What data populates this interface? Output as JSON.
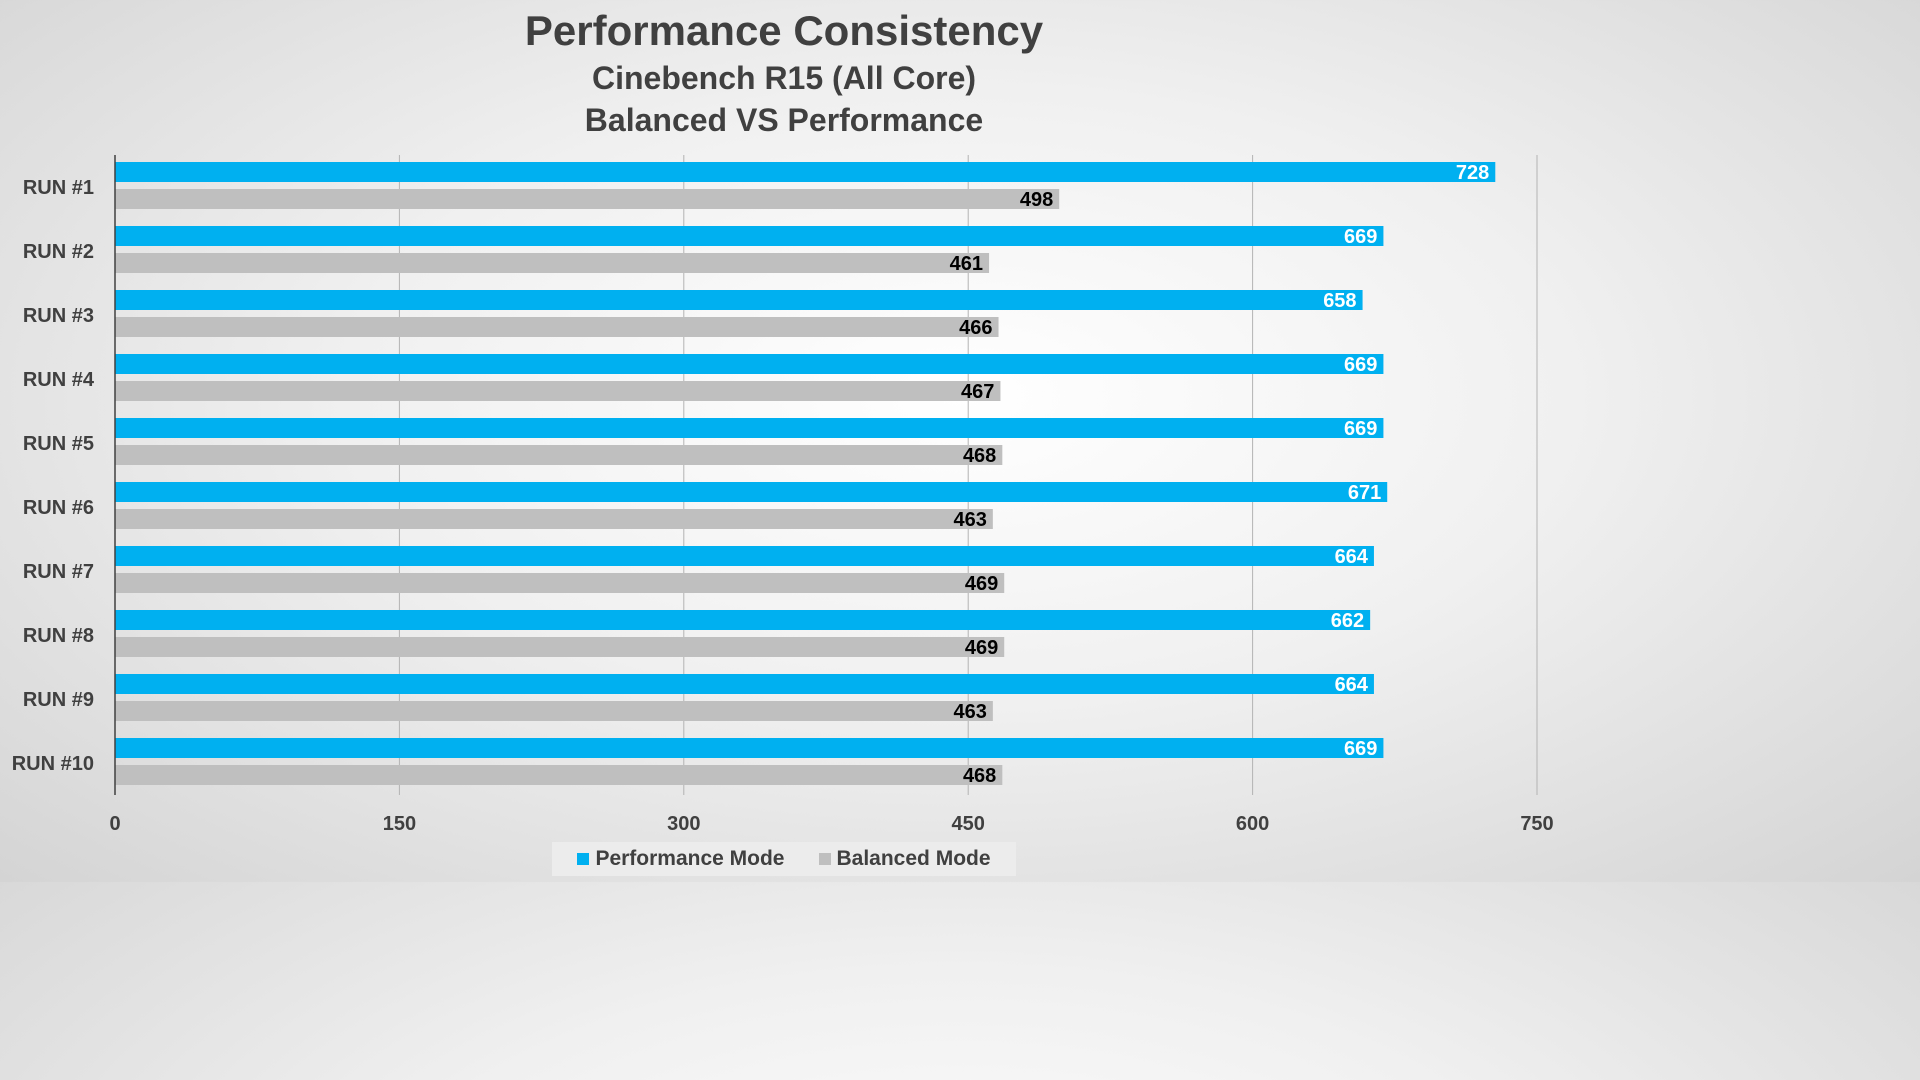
{
  "chart_data": {
    "type": "bar",
    "orientation": "horizontal",
    "title": "Performance Consistency",
    "subtitle": [
      "Cinebench R15 (All Core)",
      "Balanced VS Performance"
    ],
    "categories": [
      "RUN #1",
      "RUN #2",
      "RUN #3",
      "RUN #4",
      "RUN #5",
      "RUN #6",
      "RUN #7",
      "RUN #8",
      "RUN #9",
      "RUN #10"
    ],
    "series": [
      {
        "name": "Performance Mode",
        "color": "#00b0f0",
        "label_color": "#ffffff",
        "values": [
          728,
          669,
          658,
          669,
          669,
          671,
          664,
          662,
          664,
          669
        ]
      },
      {
        "name": "Balanced Mode",
        "color": "#bfbfbf",
        "label_color": "#000000",
        "values": [
          498,
          461,
          466,
          467,
          468,
          463,
          469,
          469,
          463,
          468
        ]
      }
    ],
    "xlim": [
      0,
      750
    ],
    "xticks": [
      0,
      150,
      300,
      450,
      600,
      750
    ],
    "grid": true,
    "legend_position": "bottom"
  }
}
